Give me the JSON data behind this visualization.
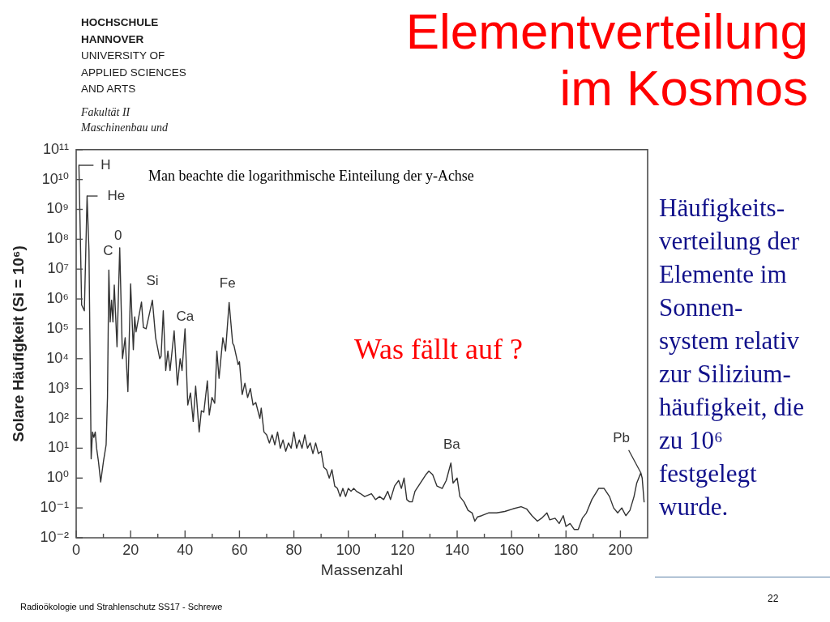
{
  "chart_data": {
    "type": "line",
    "title": "Elementverteilung im Kosmos",
    "xlabel": "Massenzahl",
    "ylabel": "Solare Häufigkeit (Si = 10⁶)",
    "annotations": [
      "Man beachte die logarithmische Einteilung der y-Achse",
      "Was fällt auf ?",
      "Häufigkeits-\nverteilung der\nElemente im\nSonnen-\nsystem relativ\nzur Silizium-\nhäufigkeit, die\nzu 10⁶\nfestgelegt\nwurde.",
      "HOCHSCHULE\nHANNOVER",
      "UNIVERSITY OF\nAPPLIED SCIENCES\nAND ARTS",
      "Fakultät II\nMaschinenbau und",
      "Radioökologie und Strahlenschutz SS17 - Schrewe",
      "22",
      {
        "text": "H",
        "x": 1,
        "y": 30000000000.0
      },
      {
        "text": "He",
        "x": 4,
        "y": 2800000000.0
      },
      {
        "text": "C",
        "x": 12,
        "y": 9300000.0
      },
      {
        "text": "0",
        "x": 16,
        "y": 52000000.0
      },
      {
        "text": "Si",
        "x": 28,
        "y": 910000.0
      },
      {
        "text": "Ca",
        "x": 40,
        "y": 100000.0
      },
      {
        "text": "Fe",
        "x": 56.2,
        "y": 760000.0
      },
      {
        "text": "Ba",
        "x": 137.7,
        "y": 3.2
      },
      {
        "text": "Pb",
        "x": 207.5,
        "y": 1.5
      }
    ],
    "x": [
      1,
      1.5,
      2,
      3,
      3.5,
      4,
      4.7,
      5.2,
      5.5,
      6,
      6.5,
      7,
      7.5,
      8.2,
      9,
      10,
      11,
      11.5,
      12,
      12.5,
      13,
      13.5,
      14,
      15,
      16,
      17,
      18,
      19,
      20,
      21,
      21.5,
      22,
      24,
      24.7,
      25.7,
      28,
      29.2,
      30.7,
      31.2,
      32,
      32.9,
      33.7,
      34.5,
      36,
      37.2,
      38.2,
      38.9,
      40,
      41,
      42,
      43,
      43.9,
      45.2,
      46,
      46.9,
      48.2,
      48.9,
      49.9,
      50.9,
      51.7,
      52.5,
      53.9,
      54.9,
      56.2,
      57.5,
      58,
      59.5,
      60,
      61,
      62,
      63,
      64,
      65,
      66,
      67.5,
      68,
      69,
      70,
      71,
      72,
      73,
      74,
      75,
      76,
      77,
      78,
      79,
      80,
      81,
      82,
      83,
      84,
      85,
      86,
      87,
      88,
      89,
      90,
      91,
      92,
      93,
      94,
      95,
      96,
      97,
      98,
      99,
      100,
      101,
      102,
      103,
      104.5,
      106,
      108.5,
      110,
      111.5,
      113,
      114.5,
      115.5,
      117,
      118.5,
      119.5,
      120.5,
      121.5,
      122.5,
      123.5,
      124.5,
      126.5,
      128.5,
      129.6,
      131,
      132.6,
      134.5,
      136,
      137.7,
      138.5,
      140,
      141,
      142.5,
      144,
      145.5,
      146.5,
      147.5,
      149,
      151.5,
      154.5,
      157.5,
      160.5,
      163.5,
      165.5,
      167.5,
      169.5,
      171,
      173,
      174,
      176,
      177.5,
      179,
      180,
      181.5,
      183,
      184.5,
      186,
      187.5,
      189.5,
      192,
      194,
      196,
      197.5,
      199,
      200.5,
      202,
      203.5,
      205,
      206,
      207.5,
      208,
      208.7
    ],
    "values": [
      30000000000.0,
      160000000.0,
      630000.0,
      400000.0,
      32000000.0,
      2800000000.0,
      40000000.0,
      2000.0,
      4.4,
      35,
      23,
      35,
      10,
      3.5,
      0.74,
      3.5,
      13,
      500,
      9300000.0,
      170000.0,
      910000.0,
      170000.0,
      2900000.0,
      25000.0,
      52000000.0,
      10000.0,
      50000.0,
      790,
      3200000.0,
      20000.0,
      250000.0,
      79000.0,
      790000.0,
      110000.0,
      100000.0,
      910000.0,
      50000.0,
      10000.0,
      12000.0,
      400000.0,
      4000.0,
      18000.0,
      4000.0,
      85000.0,
      1300.0,
      10000.0,
      4000.0,
      100000.0,
      280,
      710,
      79,
      1200.0,
      35,
      180,
      160,
      1800.0,
      130,
      500,
      320,
      18000.0,
      2200.0,
      50000.0,
      18000.0,
      760000.0,
      33000.0,
      27000.0,
      6300.0,
      7900.0,
      630,
      1500.0,
      500,
      1000.0,
      280,
      340,
      100,
      220,
      35,
      28,
      15,
      28,
      13,
      35,
      10,
      19,
      7.9,
      15,
      10,
      35,
      10,
      19,
      10,
      28,
      10,
      15,
      6.6,
      15,
      6.6,
      7.9,
      2.3,
      1.9,
      1.0,
      1.9,
      0.54,
      0.45,
      0.24,
      0.45,
      0.24,
      0.45,
      0.36,
      0.45,
      0.36,
      0.3,
      0.24,
      0.3,
      0.19,
      0.24,
      0.19,
      0.36,
      0.19,
      0.54,
      0.83,
      0.45,
      1.0,
      0.19,
      0.16,
      0.16,
      0.36,
      0.68,
      1.3,
      1.7,
      1.3,
      0.54,
      0.45,
      0.83,
      3.2,
      0.68,
      1.0,
      0.24,
      0.16,
      0.083,
      0.068,
      0.036,
      0.05,
      0.055,
      0.068,
      0.068,
      0.076,
      0.093,
      0.11,
      0.093,
      0.055,
      0.036,
      0.045,
      0.068,
      0.04,
      0.045,
      0.03,
      0.055,
      0.024,
      0.03,
      0.019,
      0.019,
      0.045,
      0.068,
      0.19,
      0.45,
      0.45,
      0.24,
      0.1,
      0.068,
      0.1,
      0.055,
      0.083,
      0.24,
      0.68,
      1.5,
      1.0,
      0.16
    ],
    "color": "#333333",
    "log": true,
    "xlim": [
      0,
      210
    ],
    "xticks": [
      0,
      {
        "value": 10,
        "label": null
      },
      20,
      {
        "value": 30,
        "label": null
      },
      40,
      {
        "value": 50,
        "label": null
      },
      60,
      {
        "value": 70,
        "label": null
      },
      80,
      {
        "value": 90,
        "label": null
      },
      100,
      {
        "value": 110,
        "label": null
      },
      120,
      {
        "value": 130,
        "label": null
      },
      140,
      {
        "value": 150,
        "label": null
      },
      160,
      {
        "value": 170,
        "label": null
      },
      180,
      {
        "value": 190,
        "label": null
      },
      200
    ],
    "ylim": [
      0.01,
      100000000000.0
    ],
    "yticks": [
      {
        "value": 0.01,
        "label": "10⁻²"
      },
      {
        "value": 0.1,
        "label": "10⁻¹"
      },
      {
        "value": 1,
        "label": "10⁰"
      },
      {
        "value": 10,
        "label": "10¹"
      },
      {
        "value": 100,
        "label": "10²"
      },
      {
        "value": 1000.0,
        "label": "10³"
      },
      {
        "value": 10000.0,
        "label": "10⁴"
      },
      {
        "value": 100000.0,
        "label": "10⁵"
      },
      {
        "value": 1000000.0,
        "label": "10⁶"
      },
      {
        "value": 10000000.0,
        "label": "10⁷"
      },
      {
        "value": 100000000.0,
        "label": "10⁸"
      },
      {
        "value": 1000000000.0,
        "label": "10⁹"
      },
      {
        "value": 10000000000.0,
        "label": "10¹⁰"
      },
      {
        "value": 100000000000.0,
        "label": "10¹¹"
      }
    ]
  }
}
